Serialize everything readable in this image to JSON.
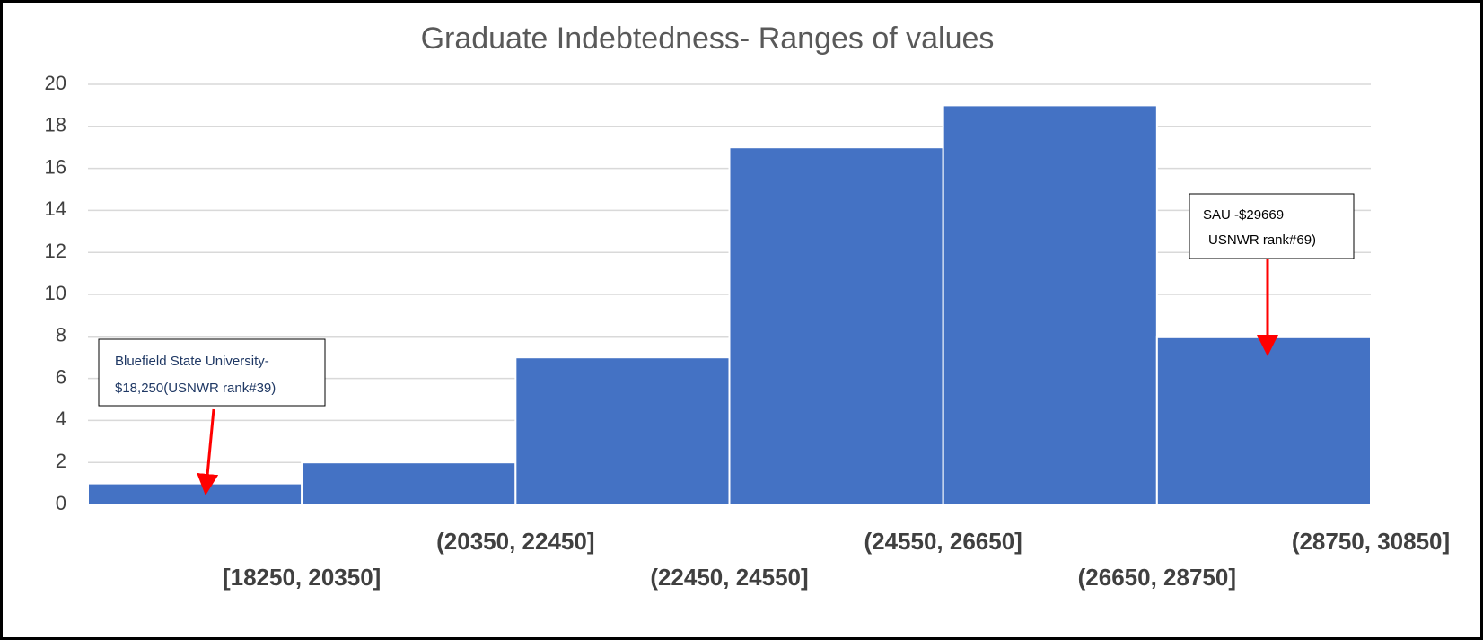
{
  "chart_data": {
    "type": "bar",
    "title": "Graduate Indebtedness- Ranges of values",
    "categories": [
      "[18250, 20350]",
      "(20350, 22450]",
      "(22450, 24550]",
      "(24550, 26650]",
      "(26650, 28750]",
      "(28750, 30850]"
    ],
    "values": [
      1,
      2,
      7,
      17,
      19,
      8
    ],
    "color": "#4472c4",
    "ylim": [
      0,
      20
    ],
    "yticks": [
      0,
      2,
      4,
      6,
      8,
      10,
      12,
      14,
      16,
      18,
      20
    ],
    "grid": true,
    "annotations": [
      {
        "lines": [
          "Bluefield State University-",
          "$18,250(USNWR rank#39)"
        ]
      },
      {
        "lines": [
          "SAU -$29669",
          "USNWR rank#69)"
        ]
      }
    ]
  }
}
